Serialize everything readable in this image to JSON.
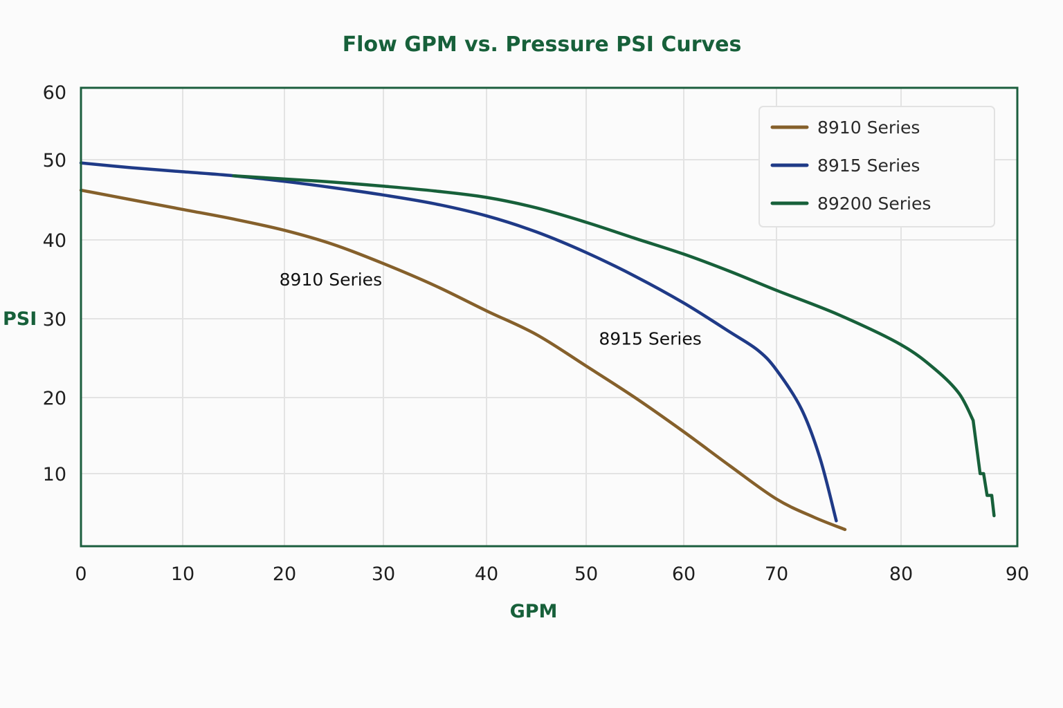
{
  "chart_data": {
    "type": "line",
    "title": "Flow GPM vs. Pressure PSI Curves",
    "xlabel": "GPM",
    "ylabel": "PSI",
    "xlim": [
      0,
      90
    ],
    "ylim": [
      0,
      60
    ],
    "grid": true,
    "legend_position": "top-right",
    "x_ticks": [
      0,
      10,
      20,
      30,
      40,
      50,
      60,
      70,
      80,
      90
    ],
    "y_ticks": [
      10,
      20,
      30,
      40,
      50,
      60
    ],
    "x_tick_labels": [
      "0",
      "10",
      "20",
      "30",
      "40",
      "50",
      "60",
      "70",
      "80",
      "90"
    ],
    "y_tick_labels": [
      "10",
      "20",
      "30",
      "40",
      "50",
      "60"
    ],
    "series": [
      {
        "name": "8910 Series",
        "color": "#85602b",
        "x": [
          0,
          5,
          10,
          15,
          20,
          25,
          30,
          35,
          40,
          45,
          50,
          55,
          60,
          65,
          70,
          73,
          75.5
        ],
        "y": [
          46.2,
          45,
          43.8,
          42.6,
          41.2,
          39.4,
          37,
          34.2,
          31,
          28,
          24,
          20,
          15.5,
          11,
          6.5,
          4,
          2.3
        ]
      },
      {
        "name": "8915 Series",
        "color": "#1f3a87",
        "x": [
          0,
          5,
          10,
          15,
          20,
          25,
          30,
          35,
          40,
          45,
          50,
          55,
          60,
          65,
          68,
          70,
          72,
          73.5,
          74.8
        ],
        "y": [
          49.6,
          49,
          48.5,
          48,
          47.3,
          46.5,
          45.6,
          44.5,
          43,
          41,
          38.4,
          35.4,
          32,
          28.3,
          26,
          23.5,
          18.5,
          12,
          3.5
        ]
      },
      {
        "name": "89200 Series",
        "color": "#17603a",
        "x": [
          15,
          20,
          25,
          30,
          35,
          40,
          45,
          50,
          55,
          60,
          65,
          70,
          75,
          80,
          83,
          85,
          86.2,
          86.8,
          87.1,
          87.4,
          87.6,
          87.8,
          88
        ],
        "y": [
          48,
          47.6,
          47.2,
          46.7,
          46.1,
          45.3,
          44,
          42.2,
          40.2,
          38.2,
          36,
          33.6,
          30.5,
          26.7,
          23.5,
          20.5,
          17,
          10,
          10,
          7,
          7,
          7,
          4.2
        ]
      }
    ],
    "annotations": [
      {
        "text": "8910 Series",
        "series": "8910 Series",
        "x": 19.5,
        "y": 35
      },
      {
        "text": "8915 Series",
        "series": "8915 Series",
        "x": 51.3,
        "y": 27.5
      }
    ]
  }
}
